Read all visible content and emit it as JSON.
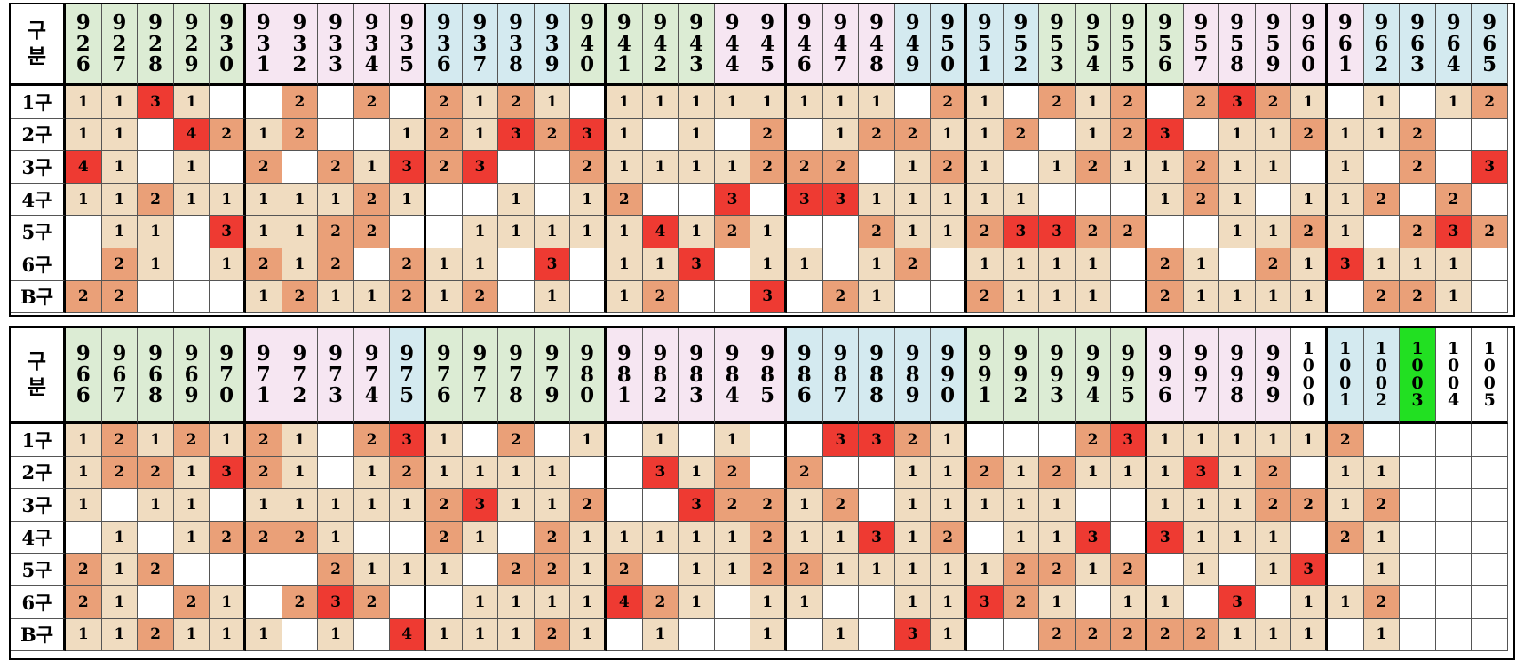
{
  "corner_label": [
    "구",
    "분"
  ],
  "row_labels": [
    "1구",
    "2구",
    "3구",
    "4구",
    "5구",
    "6구",
    "B구"
  ],
  "colors": {
    "v1": "#f0dcc0",
    "v2": "#eaa078",
    "v3": "#ee3a32",
    "header_green": "#dcecd4",
    "header_pink": "#f6e6f2",
    "header_blue": "#d4eaf0",
    "highlight_green": "#22e022"
  },
  "tables": [
    {
      "columns": [
        "926",
        "927",
        "928",
        "929",
        "930",
        "931",
        "932",
        "933",
        "934",
        "935",
        "936",
        "937",
        "938",
        "939",
        "940",
        "941",
        "942",
        "943",
        "944",
        "945",
        "946",
        "947",
        "948",
        "949",
        "950",
        "951",
        "952",
        "953",
        "954",
        "955",
        "956",
        "957",
        "958",
        "959",
        "960",
        "961",
        "962",
        "963",
        "964",
        "965"
      ],
      "header_colors": [
        "g",
        "g",
        "g",
        "g",
        "g",
        "p",
        "p",
        "p",
        "p",
        "p",
        "b",
        "b",
        "b",
        "b",
        "g",
        "g",
        "g",
        "g",
        "p",
        "p",
        "p",
        "p",
        "p",
        "b",
        "b",
        "b",
        "b",
        "g",
        "g",
        "g",
        "g",
        "p",
        "p",
        "p",
        "p",
        "p",
        "b",
        "b",
        "b",
        "b"
      ],
      "rows": [
        [
          "1",
          "1",
          "3",
          "1",
          "",
          "",
          "2",
          "",
          "2",
          "",
          "2",
          "1",
          "2",
          "1",
          "",
          "1",
          "1",
          "1",
          "1",
          "1",
          "1",
          "1",
          "1",
          "",
          "2",
          "1",
          "",
          "2",
          "1",
          "2",
          "",
          "2",
          "3",
          "2",
          "1",
          "",
          "1",
          "",
          "1",
          "2"
        ],
        [
          "1",
          "1",
          "",
          "4",
          "2",
          "1",
          "2",
          "",
          "",
          "1",
          "2",
          "1",
          "3",
          "2",
          "3",
          "1",
          "",
          "1",
          "",
          "2",
          "",
          "1",
          "2",
          "2",
          "1",
          "1",
          "2",
          "",
          "1",
          "2",
          "3",
          "",
          "1",
          "1",
          "2",
          "1",
          "1",
          "2",
          "",
          ""
        ],
        [
          "4",
          "1",
          "",
          "1",
          "",
          "2",
          "",
          "2",
          "1",
          "3",
          "2",
          "3",
          "",
          "",
          "2",
          "1",
          "1",
          "1",
          "1",
          "2",
          "2",
          "2",
          "",
          "1",
          "2",
          "1",
          "",
          "1",
          "2",
          "1",
          "1",
          "2",
          "1",
          "1",
          "",
          "1",
          "",
          "2",
          "",
          "3"
        ],
        [
          "1",
          "1",
          "2",
          "1",
          "1",
          "1",
          "1",
          "1",
          "2",
          "1",
          "",
          "",
          "1",
          "",
          "1",
          "2",
          "",
          "",
          "3",
          "",
          "3",
          "3",
          "1",
          "1",
          "1",
          "1",
          "1",
          "",
          "",
          "",
          "1",
          "2",
          "1",
          "",
          "1",
          "1",
          "2",
          "",
          "2",
          ""
        ],
        [
          "",
          "1",
          "1",
          "",
          "3",
          "1",
          "1",
          "2",
          "2",
          "",
          "",
          "1",
          "1",
          "1",
          "1",
          "1",
          "4",
          "1",
          "2",
          "1",
          "",
          "",
          "2",
          "1",
          "1",
          "2",
          "3",
          "3",
          "2",
          "2",
          "",
          "",
          "1",
          "1",
          "2",
          "1",
          "",
          "2",
          "3",
          "2"
        ],
        [
          "",
          "2",
          "1",
          "",
          "1",
          "2",
          "1",
          "2",
          "",
          "2",
          "1",
          "1",
          "",
          "3",
          "",
          "1",
          "1",
          "3",
          "",
          "1",
          "1",
          "",
          "1",
          "2",
          "",
          "1",
          "1",
          "1",
          "1",
          "",
          "2",
          "1",
          "",
          "2",
          "1",
          "3",
          "1",
          "1",
          "1",
          ""
        ],
        [
          "2",
          "2",
          "",
          "",
          "",
          "1",
          "2",
          "1",
          "1",
          "2",
          "1",
          "2",
          "",
          "1",
          "",
          "1",
          "2",
          "",
          "",
          "3",
          "",
          "2",
          "1",
          "",
          "",
          "2",
          "1",
          "1",
          "1",
          "",
          "2",
          "1",
          "1",
          "1",
          "1",
          "",
          "2",
          "2",
          "1",
          ""
        ]
      ]
    },
    {
      "columns": [
        "966",
        "967",
        "968",
        "969",
        "970",
        "971",
        "972",
        "973",
        "974",
        "975",
        "976",
        "977",
        "978",
        "979",
        "980",
        "981",
        "982",
        "983",
        "984",
        "985",
        "986",
        "987",
        "988",
        "989",
        "990",
        "991",
        "992",
        "993",
        "994",
        "995",
        "996",
        "997",
        "998",
        "999",
        "1000",
        "1001",
        "1002",
        "1003",
        "1004",
        "1005"
      ],
      "header_colors": [
        "g",
        "g",
        "g",
        "g",
        "g",
        "p",
        "p",
        "p",
        "p",
        "b",
        "g",
        "g",
        "g",
        "g",
        "g",
        "p",
        "p",
        "p",
        "p",
        "p",
        "b",
        "b",
        "b",
        "b",
        "b",
        "g",
        "g",
        "g",
        "g",
        "g",
        "p",
        "p",
        "p",
        "p",
        "w",
        "b",
        "b",
        "x",
        "w",
        "w"
      ],
      "rows": [
        [
          "1",
          "2",
          "1",
          "2",
          "1",
          "2",
          "1",
          "",
          "2",
          "3",
          "1",
          "",
          "2",
          "",
          "1",
          "",
          "1",
          "",
          "1",
          "",
          "",
          "3",
          "3",
          "2",
          "1",
          "",
          "",
          "",
          "2",
          "3",
          "1",
          "1",
          "1",
          "1",
          "1",
          "2",
          "",
          "",
          "",
          ""
        ],
        [
          "1",
          "2",
          "2",
          "1",
          "3",
          "2",
          "1",
          "",
          "1",
          "2",
          "1",
          "1",
          "1",
          "1",
          "",
          "",
          "3",
          "1",
          "2",
          "",
          "2",
          "",
          "",
          "1",
          "1",
          "2",
          "1",
          "2",
          "1",
          "1",
          "1",
          "3",
          "1",
          "2",
          "",
          "1",
          "1",
          "",
          "",
          ""
        ],
        [
          "1",
          "",
          "1",
          "1",
          "",
          "1",
          "1",
          "1",
          "1",
          "1",
          "2",
          "3",
          "1",
          "1",
          "2",
          "",
          "",
          "3",
          "2",
          "2",
          "1",
          "2",
          "",
          "1",
          "1",
          "1",
          "1",
          "1",
          "",
          "",
          "1",
          "1",
          "1",
          "2",
          "2",
          "1",
          "2",
          "",
          "",
          ""
        ],
        [
          "",
          "1",
          "",
          "1",
          "2",
          "2",
          "2",
          "1",
          "",
          "",
          "2",
          "1",
          "",
          "2",
          "1",
          "1",
          "1",
          "1",
          "1",
          "2",
          "1",
          "1",
          "3",
          "1",
          "2",
          "",
          "1",
          "1",
          "3",
          "",
          "3",
          "1",
          "1",
          "1",
          "",
          "2",
          "1",
          "",
          "",
          ""
        ],
        [
          "2",
          "1",
          "2",
          "",
          "",
          "",
          "",
          "2",
          "1",
          "1",
          "1",
          "",
          "2",
          "2",
          "1",
          "2",
          "",
          "1",
          "1",
          "2",
          "2",
          "1",
          "1",
          "1",
          "1",
          "1",
          "2",
          "2",
          "1",
          "2",
          "",
          "1",
          "",
          "1",
          "3",
          "",
          "1",
          "",
          "",
          ""
        ],
        [
          "2",
          "1",
          "",
          "2",
          "1",
          "",
          "2",
          "3",
          "2",
          "",
          "",
          "1",
          "1",
          "1",
          "1",
          "4",
          "2",
          "1",
          "",
          "1",
          "1",
          "",
          "",
          "1",
          "1",
          "3",
          "2",
          "1",
          "",
          "1",
          "1",
          "",
          "3",
          "",
          "1",
          "1",
          "2",
          "",
          "",
          ""
        ],
        [
          "1",
          "1",
          "2",
          "1",
          "1",
          "1",
          "",
          "1",
          "",
          "4",
          "1",
          "1",
          "1",
          "2",
          "1",
          "",
          "1",
          "",
          "",
          "1",
          "",
          "1",
          "",
          "3",
          "1",
          "",
          "",
          "2",
          "2",
          "2",
          "2",
          "2",
          "1",
          "1",
          "1",
          "",
          "1",
          "",
          "",
          ""
        ]
      ]
    }
  ]
}
